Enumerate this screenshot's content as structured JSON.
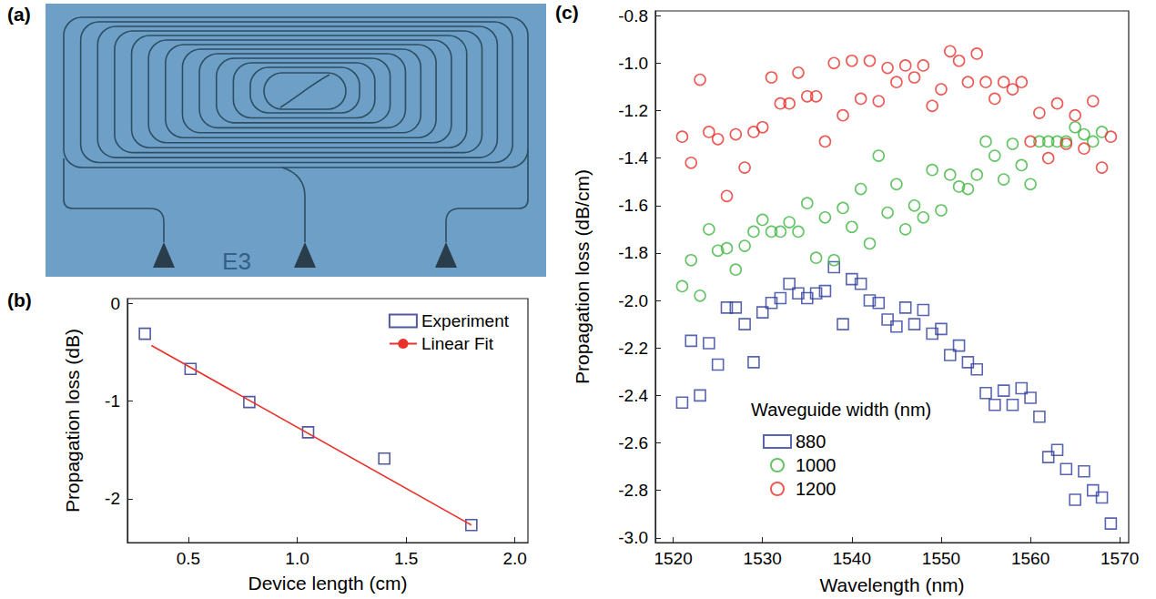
{
  "figure": {
    "panel_a": {
      "panel_label": "(a)",
      "chip_label": "E3"
    }
  },
  "chart_data": [
    {
      "panel_label": "(b)",
      "type": "scatter",
      "x_label": "Device length (cm)",
      "y_label": "Propagation loss (dB)",
      "xlim": [
        0.22,
        2.06
      ],
      "ylim": [
        -2.45,
        0.05
      ],
      "xticks": [
        0.5,
        {
          "value": 1,
          "label": "1.0"
        },
        1.5,
        {
          "value": 2,
          "label": "2.0"
        }
      ],
      "yticks": [
        -2,
        -1,
        0
      ],
      "grid": false,
      "legend": "upper right",
      "series": [
        {
          "name": "Experiment",
          "type": "scatter",
          "marker": "square",
          "color": "#27308a",
          "x": [
            0.3,
            0.51,
            0.78,
            1.05,
            1.4,
            1.8
          ],
          "values": [
            -0.31,
            -0.67,
            -1.01,
            -1.32,
            -1.59,
            -2.27
          ]
        },
        {
          "name": "Linear Fit",
          "type": "line",
          "line_style": "solid",
          "color": "#e8322a",
          "x": [
            0.33,
            1.8
          ],
          "values": [
            -0.43,
            -2.27
          ]
        }
      ]
    },
    {
      "panel_label": "(c)",
      "type": "scatter",
      "x_label": "Wavelength (nm)",
      "y_label": "Propagation loss (dB/cm)",
      "xlim": [
        1518,
        1571
      ],
      "ylim": [
        -3.02,
        -0.78
      ],
      "xticks": [
        1520,
        1530,
        1540,
        1550,
        1560,
        1570
      ],
      "yticks": [
        {
          "value": -3,
          "label": "-3.0"
        },
        -2.8,
        -2.6,
        -2.4,
        -2.2,
        {
          "value": -2,
          "label": "-2.0"
        },
        -1.8,
        -1.6,
        -1.4,
        -1.2,
        {
          "value": -1,
          "label": "-1.0"
        },
        -0.8
      ],
      "grid": false,
      "legend": "lower left",
      "legend_title": "Waveguide width (nm)",
      "series": [
        {
          "name": "880",
          "marker": "square",
          "color": "#2f3f9c",
          "x": [
            1521,
            1522,
            1523,
            1524,
            1525,
            1526,
            1527,
            1528,
            1529,
            1530,
            1531,
            1532,
            1533,
            1534,
            1535,
            1536,
            1537,
            1538,
            1539,
            1540,
            1541,
            1542,
            1543,
            1544,
            1545,
            1546,
            1547,
            1548,
            1549,
            1550,
            1551,
            1552,
            1553,
            1554,
            1555,
            1556,
            1557,
            1558,
            1559,
            1560,
            1561,
            1562,
            1563,
            1564,
            1565,
            1566,
            1567,
            1568,
            1569
          ],
          "values": [
            -2.43,
            -2.17,
            -2.4,
            -2.18,
            -2.27,
            -2.03,
            -2.03,
            -2.1,
            -2.26,
            -2.05,
            -2.01,
            -1.99,
            -1.93,
            -1.97,
            -1.99,
            -1.97,
            -1.96,
            -1.86,
            -2.1,
            -1.91,
            -1.93,
            -2.0,
            -2.01,
            -2.08,
            -2.11,
            -2.03,
            -2.1,
            -2.04,
            -2.14,
            -2.12,
            -2.23,
            -2.19,
            -2.26,
            -2.29,
            -2.39,
            -2.44,
            -2.38,
            -2.44,
            -2.37,
            -2.41,
            -2.49,
            -2.66,
            -2.63,
            -2.71,
            -2.84,
            -2.72,
            -2.8,
            -2.83,
            -2.94
          ]
        },
        {
          "name": "1000",
          "marker": "circle",
          "color": "#3fb53f",
          "x": [
            1521,
            1522,
            1523,
            1524,
            1525,
            1526,
            1527,
            1528,
            1529,
            1530,
            1531,
            1532,
            1533,
            1534,
            1535,
            1536,
            1537,
            1538,
            1539,
            1540,
            1541,
            1542,
            1543,
            1544,
            1545,
            1546,
            1547,
            1548,
            1549,
            1550,
            1551,
            1552,
            1553,
            1554,
            1555,
            1556,
            1557,
            1558,
            1559,
            1560,
            1561,
            1562,
            1563,
            1564,
            1565,
            1566,
            1567,
            1568
          ],
          "values": [
            -1.94,
            -1.83,
            -1.98,
            -1.7,
            -1.79,
            -1.78,
            -1.87,
            -1.77,
            -1.71,
            -1.66,
            -1.71,
            -1.71,
            -1.67,
            -1.71,
            -1.59,
            -1.82,
            -1.65,
            -1.83,
            -1.61,
            -1.69,
            -1.53,
            -1.76,
            -1.39,
            -1.63,
            -1.51,
            -1.7,
            -1.6,
            -1.65,
            -1.45,
            -1.62,
            -1.47,
            -1.52,
            -1.53,
            -1.47,
            -1.33,
            -1.39,
            -1.49,
            -1.34,
            -1.43,
            -1.51,
            -1.33,
            -1.33,
            -1.33,
            -1.33,
            -1.27,
            -1.3,
            -1.33,
            -1.29
          ]
        },
        {
          "name": "1200",
          "marker": "circle",
          "color": "#e8302a",
          "x": [
            1521,
            1522,
            1523,
            1524,
            1525,
            1526,
            1527,
            1528,
            1529,
            1530,
            1531,
            1532,
            1533,
            1534,
            1535,
            1536,
            1537,
            1538,
            1539,
            1540,
            1541,
            1542,
            1543,
            1544,
            1545,
            1546,
            1547,
            1548,
            1549,
            1550,
            1551,
            1552,
            1553,
            1554,
            1555,
            1556,
            1557,
            1558,
            1559,
            1560,
            1561,
            1562,
            1563,
            1564,
            1565,
            1566,
            1567,
            1568,
            1569
          ],
          "values": [
            -1.31,
            -1.42,
            -1.07,
            -1.29,
            -1.32,
            -1.56,
            -1.3,
            -1.44,
            -1.29,
            -1.27,
            -1.06,
            -1.17,
            -1.17,
            -1.04,
            -1.14,
            -1.14,
            -1.33,
            -1.0,
            -1.22,
            -0.99,
            -1.15,
            -0.99,
            -1.16,
            -1.02,
            -1.08,
            -1.01,
            -1.06,
            -1.01,
            -1.18,
            -1.11,
            -0.95,
            -0.99,
            -1.08,
            -0.96,
            -1.08,
            -1.15,
            -1.08,
            -1.11,
            -1.08,
            -1.33,
            -1.21,
            -1.4,
            -1.17,
            -1.34,
            -1.22,
            -1.36,
            -1.16,
            -1.44,
            -1.31
          ]
        }
      ]
    }
  ]
}
